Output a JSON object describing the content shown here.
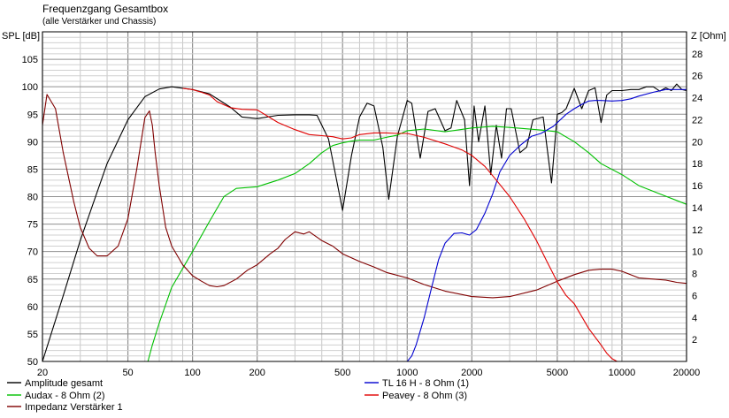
{
  "chart_data": {
    "type": "line",
    "title": "Frequenzgang Gesamtbox",
    "subtitle": "(alle Verstärker und Chassis)",
    "ylabel": "SPL [dB]",
    "y2label": "Z [Ohm]",
    "x_scale": "log",
    "xlim": [
      20,
      20000
    ],
    "ylim": [
      50,
      110
    ],
    "y2lim": [
      0,
      30
    ],
    "grid": true,
    "x_ticks": [
      20,
      50,
      100,
      200,
      500,
      1000,
      2000,
      5000,
      10000,
      20000
    ],
    "x_tick_labels": [
      "20",
      "50",
      "100",
      "200",
      "500",
      "1000",
      "2000",
      "5000",
      "10000",
      "20000"
    ],
    "y_ticks": [
      50,
      55,
      60,
      65,
      70,
      75,
      80,
      85,
      90,
      95,
      100,
      105
    ],
    "y2_ticks": [
      2,
      4,
      6,
      8,
      10,
      12,
      14,
      16,
      18,
      20,
      22,
      24,
      26,
      28
    ],
    "legend_position": "bottom",
    "series": [
      {
        "name": "Amplitude gesamt",
        "color": "#000000",
        "axis": "left",
        "x": [
          20,
          25,
          30,
          40,
          50,
          60,
          70,
          80,
          100,
          120,
          150,
          170,
          200,
          250,
          300,
          350,
          380,
          430,
          500,
          550,
          600,
          650,
          700,
          770,
          820,
          900,
          1000,
          1050,
          1150,
          1250,
          1350,
          1500,
          1600,
          1700,
          1850,
          1950,
          2050,
          2150,
          2300,
          2450,
          2600,
          2750,
          2900,
          3050,
          3350,
          3600,
          3850,
          4300,
          4700,
          5000,
          5250,
          5500,
          6000,
          6500,
          7000,
          7500,
          8000,
          8500,
          9000,
          10000,
          11000,
          12000,
          13000,
          14000,
          15000,
          16000,
          17000,
          18000,
          19000,
          20000
        ],
        "y": [
          50,
          62,
          72,
          86,
          94,
          98.2,
          99.6,
          100,
          99.5,
          98.7,
          96.3,
          94.5,
          94.2,
          94.8,
          94.9,
          94.9,
          94.8,
          90.5,
          77.5,
          87.5,
          94.5,
          97,
          96.5,
          89,
          79.5,
          91,
          97.5,
          97,
          87,
          95.5,
          96,
          92,
          92.5,
          97.5,
          94,
          82,
          96.5,
          90,
          96.5,
          84,
          93,
          87,
          96,
          96,
          88,
          89,
          94,
          94.5,
          82.5,
          95,
          95.3,
          96,
          99.7,
          96,
          99.3,
          99.8,
          93.5,
          98.5,
          99.3,
          99.3,
          99.5,
          99.5,
          100,
          100,
          99.2,
          99.8,
          99.3,
          100.5,
          99.5,
          99.3
        ]
      },
      {
        "name": "Audax - 8 Ohm  (2)",
        "color": "#00c000",
        "axis": "left",
        "x": [
          62,
          65,
          70,
          80,
          100,
          120,
          140,
          160,
          200,
          250,
          300,
          350,
          400,
          450,
          500,
          550,
          600,
          700,
          800,
          900,
          1000,
          1200,
          1500,
          2000,
          2500,
          3000,
          4000,
          5000,
          6000,
          7000,
          8000,
          10000,
          12000,
          15000,
          20000
        ],
        "y": [
          50,
          53,
          57,
          63.5,
          70,
          75.5,
          80,
          81.5,
          81.8,
          83,
          84.2,
          86,
          88,
          89.3,
          89.8,
          90.1,
          90.3,
          90.3,
          90.8,
          91.2,
          92,
          92.3,
          91.8,
          92.5,
          92.8,
          92.6,
          92.2,
          91.8,
          90,
          88,
          86,
          84,
          82,
          80.5,
          78.6
        ]
      },
      {
        "name": "Impedanz Verstärker 1",
        "color": "#800000",
        "axis": "right",
        "x": [
          20,
          21,
          23,
          25,
          28,
          30,
          33,
          36,
          40,
          45,
          50,
          55,
          60,
          63,
          65,
          67,
          70,
          75,
          80,
          90,
          100,
          110,
          120,
          130,
          140,
          160,
          180,
          200,
          230,
          250,
          270,
          300,
          330,
          350,
          400,
          450,
          500,
          600,
          700,
          800,
          1000,
          1200,
          1500,
          2000,
          2500,
          3000,
          4000,
          5000,
          6000,
          7000,
          8000,
          9000,
          10000,
          12000,
          14000,
          16000,
          18000,
          20000
        ],
        "y": [
          21.5,
          24.3,
          23,
          19,
          14.5,
          12.2,
          10.3,
          9.6,
          9.6,
          10.5,
          13,
          17.5,
          22.2,
          22.8,
          21.5,
          19,
          16,
          12.2,
          10.5,
          8.8,
          7.8,
          7.3,
          6.9,
          6.8,
          6.9,
          7.5,
          8.3,
          8.8,
          9.8,
          10.3,
          11.1,
          11.8,
          11.6,
          11.8,
          11,
          10.5,
          9.8,
          9.1,
          8.6,
          8.1,
          7.6,
          7,
          6.4,
          5.9,
          5.8,
          5.9,
          6.5,
          7.3,
          7.9,
          8.3,
          8.4,
          8.4,
          8.2,
          7.6,
          7.5,
          7.4,
          7.2,
          7.1
        ]
      },
      {
        "name": "TL 16 H - 8 Ohm (1)",
        "color": "#0000d0",
        "axis": "left",
        "x": [
          1000,
          1050,
          1100,
          1200,
          1300,
          1400,
          1500,
          1650,
          1800,
          1950,
          2100,
          2300,
          2500,
          2700,
          3000,
          3400,
          3800,
          4200,
          4800,
          5500,
          6000,
          6500,
          7000,
          7500,
          8000,
          9000,
          10000,
          11000,
          12000,
          14000,
          16000,
          18000,
          20000
        ],
        "y": [
          50,
          51,
          53,
          58,
          63.5,
          68.5,
          71.5,
          73.3,
          73.4,
          73,
          74,
          77,
          80.5,
          84.5,
          87.5,
          89.5,
          91,
          91.5,
          92.8,
          95,
          96,
          96.8,
          97.4,
          97.5,
          97.5,
          97.4,
          97.5,
          97.8,
          98.3,
          99,
          99.5,
          99.5,
          99.5
        ]
      },
      {
        "name": "Peavey - 8 Ohm (3)",
        "color": "#e00000",
        "axis": "left",
        "x": [
          90,
          100,
          110,
          120,
          130,
          150,
          170,
          200,
          250,
          300,
          350,
          400,
          450,
          500,
          550,
          600,
          700,
          800,
          900,
          1000,
          1200,
          1500,
          1800,
          2000,
          2300,
          2600,
          3000,
          3500,
          4000,
          4500,
          5000,
          5500,
          6000,
          7000,
          8000,
          8500,
          9000,
          9500,
          10000,
          12000,
          15000,
          20000
        ],
        "y": [
          99.7,
          99.5,
          99,
          98.5,
          97.3,
          96.2,
          95.9,
          95.8,
          93.5,
          92.2,
          91.3,
          91.1,
          90.9,
          90.5,
          90.7,
          91.3,
          91.6,
          91.6,
          91.5,
          91.5,
          90.8,
          89.6,
          88.5,
          87.5,
          85.5,
          83,
          80,
          76,
          72,
          68,
          64.5,
          62,
          60.5,
          56,
          53,
          51.5,
          50.5,
          50,
          50,
          50,
          50,
          50
        ]
      }
    ]
  }
}
